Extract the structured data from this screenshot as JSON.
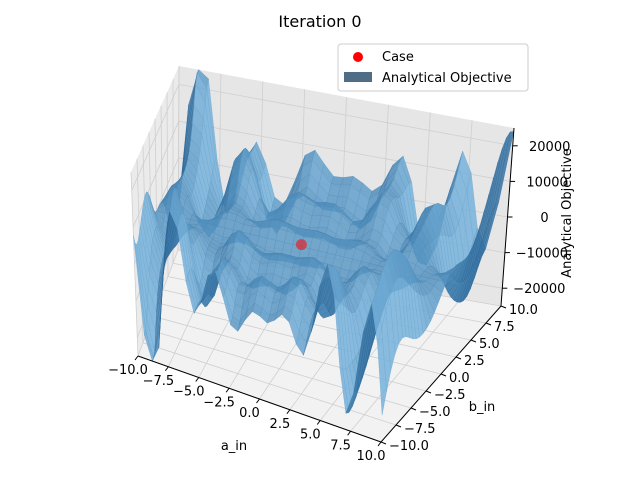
{
  "chart_data": {
    "type": "surface3d",
    "title": "Iteration 0",
    "xlabel": "a_in",
    "ylabel": "b_in",
    "zlabel": "Analytical Objective",
    "x_ticks": [
      "−10.0",
      "−7.5",
      "−5.0",
      "−2.5",
      "0.0",
      "2.5",
      "5.0",
      "7.5",
      "10.0"
    ],
    "y_ticks": [
      "−10.0",
      "−7.5",
      "−5.0",
      "−2.5",
      "0.0",
      "2.5",
      "5.0",
      "7.5",
      "10.0"
    ],
    "z_ticks": [
      "−20000",
      "−10000",
      "0",
      "10000",
      "20000"
    ],
    "xlim": [
      -10,
      10
    ],
    "ylim": [
      -10,
      10
    ],
    "zlim": [
      -25000,
      25000
    ],
    "legend": [
      {
        "label": "Case",
        "color": "#ff0000",
        "marker": "circle"
      },
      {
        "label": "Analytical Objective",
        "color": "#4f6d85",
        "marker": "rect"
      }
    ],
    "legend_position": "upper-right",
    "case_point": {
      "x": 0,
      "y": 0,
      "z": 0
    },
    "surface_color": "#3a87c0"
  }
}
